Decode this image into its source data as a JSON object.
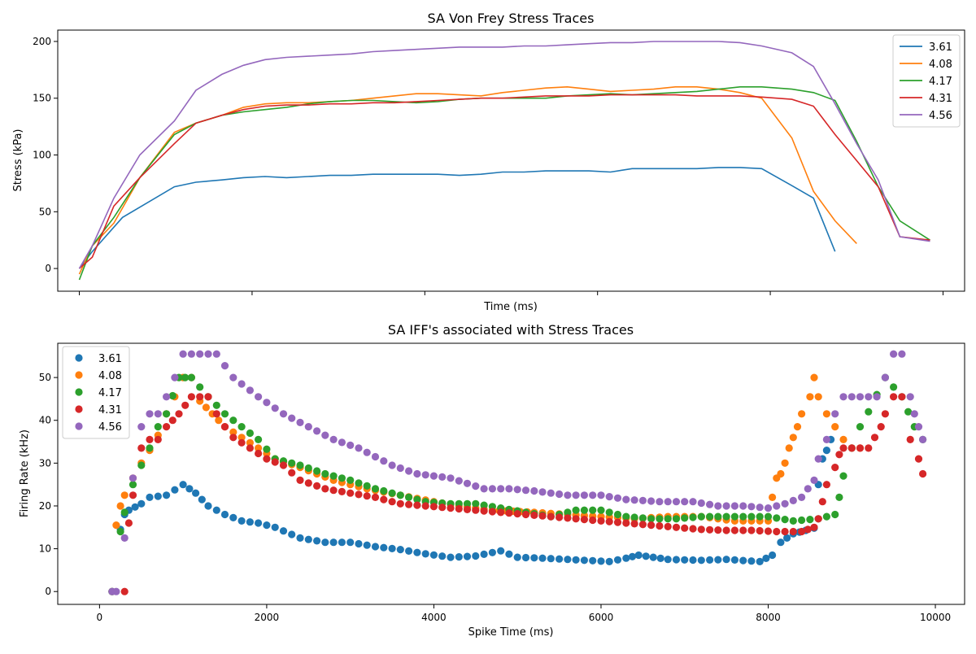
{
  "colors": {
    "3.61": "#1f77b4",
    "4.08": "#ff7f0e",
    "4.17": "#2ca02c",
    "4.31": "#d62728",
    "4.56": "#9467bd"
  },
  "chart_data": [
    {
      "type": "line",
      "title": "SA Von Frey Stress Traces",
      "xlabel": "Time (ms)",
      "ylabel": "Stress (kPa)",
      "xlim": [
        -250,
        10250
      ],
      "ylim": [
        -20,
        210
      ],
      "xticks": [
        0,
        2000,
        4000,
        6000,
        8000,
        10000
      ],
      "xtick_labels_shown": false,
      "yticks": [
        0,
        50,
        100,
        150,
        200
      ],
      "legend_position": "top-right",
      "series": [
        {
          "name": "3.61",
          "color": "#1f77b4",
          "x": [
            0,
            150,
            500,
            1100,
            1350,
            1650,
            1900,
            2150,
            2400,
            2650,
            2900,
            3150,
            3400,
            3650,
            3900,
            4150,
            4400,
            4650,
            4900,
            5150,
            5400,
            5650,
            5900,
            6150,
            6400,
            6650,
            6900,
            7150,
            7400,
            7650,
            7900,
            8250,
            8500,
            8750
          ],
          "y": [
            0,
            15,
            45,
            72,
            76,
            78,
            80,
            81,
            80,
            81,
            82,
            82,
            83,
            83,
            83,
            83,
            82,
            83,
            85,
            85,
            86,
            86,
            86,
            85,
            88,
            88,
            88,
            88,
            89,
            89,
            88,
            73,
            62,
            15
          ]
        },
        {
          "name": "4.08",
          "color": "#ff7f0e",
          "x": [
            0,
            150,
            400,
            700,
            1100,
            1350,
            1650,
            1900,
            2150,
            2400,
            2650,
            2900,
            3150,
            3400,
            3650,
            3900,
            4150,
            4400,
            4650,
            4900,
            5150,
            5400,
            5650,
            5900,
            6150,
            6400,
            6650,
            6900,
            7150,
            7400,
            7650,
            7900,
            8250,
            8500,
            8750,
            9000
          ],
          "y": [
            -5,
            20,
            40,
            80,
            120,
            128,
            135,
            142,
            145,
            146,
            146,
            147,
            148,
            150,
            152,
            154,
            154,
            153,
            152,
            155,
            157,
            159,
            160,
            158,
            156,
            157,
            158,
            160,
            160,
            158,
            155,
            150,
            115,
            68,
            42,
            22
          ]
        },
        {
          "name": "4.17",
          "color": "#2ca02c",
          "x": [
            0,
            150,
            400,
            700,
            1100,
            1350,
            1650,
            1900,
            2150,
            2400,
            2650,
            2900,
            3150,
            3400,
            3650,
            3900,
            4150,
            4400,
            4650,
            4900,
            5150,
            5400,
            5650,
            5900,
            6150,
            6400,
            6650,
            6900,
            7150,
            7400,
            7650,
            7900,
            8250,
            8500,
            8750,
            9000,
            9250,
            9500,
            9850
          ],
          "y": [
            -10,
            20,
            45,
            80,
            118,
            128,
            135,
            138,
            140,
            142,
            145,
            147,
            148,
            148,
            147,
            146,
            147,
            149,
            150,
            150,
            150,
            150,
            152,
            153,
            154,
            153,
            154,
            155,
            156,
            158,
            160,
            160,
            158,
            155,
            148,
            112,
            72,
            42,
            25
          ]
        },
        {
          "name": "4.31",
          "color": "#d62728",
          "x": [
            0,
            150,
            400,
            700,
            1100,
            1350,
            1650,
            1900,
            2150,
            2400,
            2650,
            2900,
            3150,
            3400,
            3650,
            3900,
            4150,
            4400,
            4650,
            4900,
            5150,
            5400,
            5650,
            5900,
            6150,
            6400,
            6650,
            6900,
            7150,
            7400,
            7650,
            7900,
            8250,
            8500,
            8750,
            9000,
            9250,
            9500,
            9850
          ],
          "y": [
            0,
            10,
            55,
            80,
            110,
            128,
            135,
            140,
            143,
            144,
            144,
            145,
            145,
            146,
            146,
            147,
            148,
            149,
            150,
            150,
            151,
            152,
            152,
            152,
            153,
            153,
            153,
            153,
            152,
            152,
            152,
            151,
            149,
            143,
            118,
            95,
            72,
            28,
            25
          ]
        },
        {
          "name": "4.56",
          "color": "#9467bd",
          "x": [
            0,
            150,
            400,
            700,
            1100,
            1350,
            1650,
            1900,
            2150,
            2400,
            2650,
            2900,
            3150,
            3400,
            3650,
            3900,
            4150,
            4400,
            4650,
            4900,
            5150,
            5400,
            5650,
            5900,
            6150,
            6400,
            6650,
            6900,
            7150,
            7400,
            7650,
            7900,
            8250,
            8500,
            8750,
            9000,
            9250,
            9500,
            9850
          ],
          "y": [
            0,
            20,
            62,
            100,
            130,
            157,
            171,
            179,
            184,
            186,
            187,
            188,
            189,
            191,
            192,
            193,
            194,
            195,
            195,
            195,
            196,
            196,
            197,
            198,
            199,
            199,
            200,
            200,
            200,
            200,
            199,
            196,
            190,
            178,
            145,
            110,
            78,
            28,
            24
          ]
        }
      ]
    },
    {
      "type": "scatter",
      "title": "SA IFF's associated with Stress Traces",
      "xlabel": "Spike Time (ms)",
      "ylabel": "Firing Rate (kHz)",
      "xlim": [
        -500,
        10350
      ],
      "ylim": [
        -3,
        58
      ],
      "xticks": [
        0,
        2000,
        4000,
        6000,
        8000,
        10000
      ],
      "yticks": [
        0,
        10,
        20,
        30,
        40,
        50
      ],
      "legend_position": "top-left",
      "series": [
        {
          "name": "3.61",
          "color": "#1f77b4",
          "anchors_x": [
            150,
            250,
            300,
            350,
            500,
            600,
            800,
            1000,
            1150,
            1300,
            1500,
            1700,
            1900,
            2100,
            2400,
            2700,
            3000,
            3300,
            3600,
            3900,
            4200,
            4500,
            4800,
            5000,
            5300,
            5600,
            5900,
            6100,
            6300,
            6450,
            6800,
            7200,
            7500,
            7900,
            8050,
            8150,
            8300,
            8450,
            8550,
            8600,
            8650,
            8700,
            8750
          ],
          "anchors_y": [
            0,
            14.5,
            18,
            19,
            20.5,
            22,
            22.5,
            25,
            23,
            20,
            18,
            16.5,
            16,
            15,
            12.5,
            11.5,
            11.5,
            10.5,
            9.8,
            8.8,
            8,
            8.3,
            9.5,
            8,
            7.8,
            7.5,
            7.2,
            7,
            7.8,
            8.5,
            7.5,
            7.3,
            7.5,
            7,
            8.5,
            11.5,
            13.5,
            14.3,
            14.8,
            25,
            31,
            33,
            35.5
          ],
          "step": 90
        },
        {
          "name": "4.08",
          "color": "#ff7f0e",
          "anchors_x": [
            150,
            200,
            250,
            300,
            400,
            500,
            600,
            700,
            800,
            900,
            1000,
            1100,
            1200,
            1350,
            1500,
            1700,
            1900,
            2100,
            2400,
            2800,
            3200,
            3600,
            4000,
            4300,
            4700,
            5200,
            5600,
            6000,
            6400,
            6800,
            7200,
            7600,
            8000,
            8050,
            8100,
            8150,
            8200,
            8250,
            8300,
            8350,
            8400,
            8500,
            8550,
            8600,
            8700,
            8800,
            8900,
            9000,
            9100
          ],
          "anchors_y": [
            0,
            15.5,
            20,
            22.5,
            26.5,
            30,
            33,
            36.5,
            41.5,
            45.5,
            50,
            50,
            44.5,
            41.5,
            38.5,
            36,
            33.5,
            31,
            29,
            26,
            24,
            22.5,
            21,
            20,
            19,
            18.5,
            18,
            17.5,
            17,
            17.5,
            17.5,
            16.5,
            16.5,
            22,
            26.5,
            27.5,
            30,
            33.5,
            36,
            38.5,
            41.5,
            45.5,
            50,
            45.5,
            41.5,
            38.5,
            35.5,
            33.5,
            33.5
          ],
          "step": 90
        },
        {
          "name": "4.17",
          "color": "#2ca02c",
          "anchors_x": [
            150,
            250,
            300,
            400,
            500,
            600,
            700,
            800,
            950,
            1100,
            1300,
            1500,
            1700,
            1900,
            2100,
            2400,
            2700,
            3000,
            3300,
            3600,
            3900,
            4200,
            4500,
            4800,
            5100,
            5400,
            5700,
            6000,
            6300,
            6600,
            6900,
            7200,
            7500,
            7800,
            8000,
            8300,
            8600,
            8800,
            8850,
            8900,
            9000,
            9100,
            9200,
            9300,
            9400,
            9600,
            9750,
            9850
          ],
          "anchors_y": [
            0,
            14,
            18.5,
            25,
            29.5,
            33.5,
            38.5,
            41.5,
            50,
            50,
            45.5,
            41.5,
            38.5,
            35.5,
            31,
            29.5,
            27.5,
            26,
            24,
            22.5,
            21,
            20.5,
            20.5,
            19.5,
            18.5,
            17.5,
            19,
            19,
            17.5,
            17,
            17,
            17.5,
            17.5,
            17.5,
            17.5,
            16.5,
            17,
            18,
            22,
            27,
            33.5,
            38.5,
            42,
            46,
            50,
            45.5,
            38.5,
            35.5
          ],
          "step": 90
        },
        {
          "name": "4.31",
          "color": "#d62728",
          "anchors_x": [
            300,
            350,
            400,
            500,
            600,
            700,
            800,
            950,
            1100,
            1300,
            1400,
            1500,
            1600,
            1800,
            2000,
            2200,
            2400,
            2700,
            3000,
            3300,
            3600,
            3900,
            4200,
            4500,
            4800,
            5100,
            5400,
            5700,
            6000,
            6300,
            6600,
            6900,
            7200,
            7500,
            7800,
            8100,
            8400,
            8550,
            8600,
            8650,
            8700,
            8800,
            8850,
            8900,
            9000,
            9200,
            9350,
            9400,
            9500,
            9600,
            9700,
            9800,
            9850
          ],
          "anchors_y": [
            0,
            16,
            22.5,
            33.5,
            35.5,
            35.5,
            38.5,
            41.5,
            45.5,
            45.5,
            41.5,
            38.5,
            36,
            33.5,
            31,
            29.5,
            26,
            24,
            23,
            22,
            20.5,
            20,
            19.5,
            19,
            18.5,
            18,
            17.5,
            17,
            16.5,
            16,
            15.5,
            15,
            14.5,
            14.3,
            14.3,
            14,
            14,
            15,
            17,
            21,
            25,
            29,
            32,
            33.5,
            33.5,
            33.5,
            38.5,
            41.5,
            45.5,
            45.5,
            35.5,
            31,
            27.5
          ],
          "step": 90
        },
        {
          "name": "4.56",
          "color": "#9467bd",
          "anchors_x": [
            150,
            200,
            300,
            400,
            500,
            600,
            700,
            800,
            900,
            1000,
            1200,
            1400,
            1600,
            1900,
            2200,
            2500,
            2800,
            3100,
            3500,
            3800,
            4200,
            4600,
            4900,
            5200,
            5600,
            6000,
            6300,
            6700,
            7100,
            7400,
            7700,
            8000,
            8200,
            8400,
            8550,
            8600,
            8700,
            8800,
            8900,
            9000,
            9200,
            9300,
            9400,
            9500,
            9600,
            9700,
            9750,
            9800,
            9850
          ],
          "anchors_y": [
            0,
            0,
            12.5,
            26.5,
            38.5,
            41.5,
            41.5,
            45.5,
            50,
            55.5,
            55.5,
            55.5,
            50,
            45.5,
            41.5,
            38.5,
            35.5,
            33.5,
            29.5,
            27.5,
            26.5,
            24,
            24,
            23.5,
            22.5,
            22.5,
            21.5,
            21,
            21,
            20,
            20,
            19.5,
            20.5,
            22,
            26,
            31,
            35.5,
            41.5,
            45.5,
            45.5,
            45.5,
            45.5,
            50,
            55.5,
            55.5,
            45.5,
            41.5,
            38.5,
            35.5
          ],
          "step": 90
        }
      ]
    }
  ]
}
